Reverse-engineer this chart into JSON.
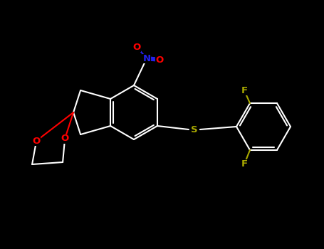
{
  "bg_color": "#000000",
  "bond_color": "#ffffff",
  "bond_width": 1.8,
  "atom_colors": {
    "O": "#ff0000",
    "N": "#2222ee",
    "S": "#aaaa00",
    "F": "#aaaa00",
    "C": "#ffffff"
  },
  "font_size": 10,
  "dpi": 100,
  "fig_w": 4.55,
  "fig_h": 3.5
}
